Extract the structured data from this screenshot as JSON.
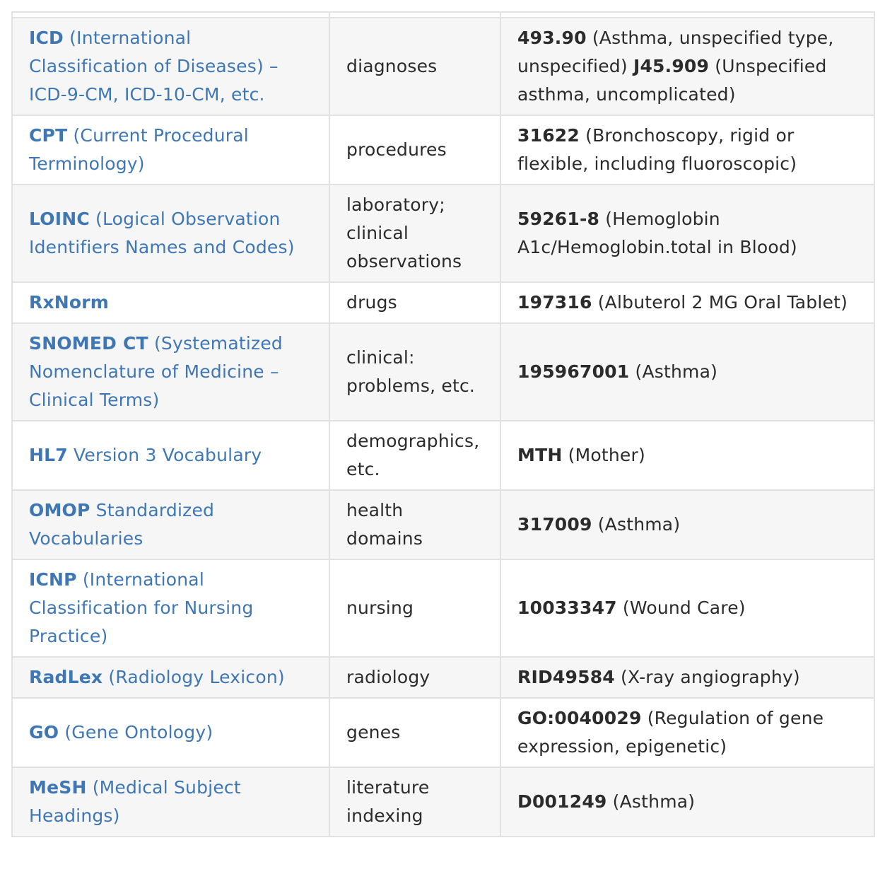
{
  "rows": [
    {
      "abbr": "ICD",
      "full": " (International Classification of Diseases) – ICD-9-CM, ICD-10-CM, etc.",
      "domain": "diagnoses",
      "ex1_code": "493.90",
      "ex1_desc": " (Asthma, unspecified type, unspecified) ",
      "ex2_code": "J45.909",
      "ex2_desc": " (Unspecified asthma, uncomplicated)"
    },
    {
      "abbr": "CPT",
      "full": " (Current Procedural Terminology)",
      "domain": "procedures",
      "ex1_code": "31622",
      "ex1_desc": " (Bronchoscopy, rigid or flexible, including fluoroscopic)"
    },
    {
      "abbr": "LOINC",
      "full": " (Logical Observation Identifiers Names and Codes)",
      "domain": "laboratory; clinical observations",
      "ex1_code": "59261-8",
      "ex1_desc": " (Hemoglobin A1c/Hemoglobin.total in Blood)"
    },
    {
      "abbr": "RxNorm",
      "full": "",
      "domain": "drugs",
      "ex1_code": "197316",
      "ex1_desc": " (Albuterol 2 MG Oral Tablet)"
    },
    {
      "abbr": "SNOMED CT",
      "full": " (Systematized Nomenclature of Medicine – Clinical Terms)",
      "domain": "clinical: problems, etc.",
      "ex1_code": "195967001",
      "ex1_desc": " (Asthma)"
    },
    {
      "abbr": "HL7",
      "full": " Version 3 Vocabulary",
      "domain": "demographics, etc.",
      "ex1_code": "MTH",
      "ex1_desc": " (Mother)"
    },
    {
      "abbr": "OMOP",
      "full": " Standardized Vocabularies",
      "domain": "health domains",
      "ex1_code": "317009",
      "ex1_desc": " (Asthma)"
    },
    {
      "abbr": "ICNP",
      "full": " (International Classification for Nursing Practice)",
      "domain": "nursing",
      "ex1_code": "10033347",
      "ex1_desc": " (Wound Care)"
    },
    {
      "abbr": "RadLex",
      "full": " (Radiology Lexicon)",
      "domain": "radiology",
      "ex1_code": "RID49584",
      "ex1_desc": " (X-ray angiography)"
    },
    {
      "abbr": "GO",
      "full": " (Gene Ontology)",
      "domain": "genes",
      "ex1_code": "GO:0040029",
      "ex1_desc": " (Regulation of gene expression, epigenetic)"
    },
    {
      "abbr": "MeSH",
      "full": " (Medical Subject Headings)",
      "domain": "literature indexing",
      "ex1_code": "D001249",
      "ex1_desc": " (Asthma)"
    }
  ]
}
